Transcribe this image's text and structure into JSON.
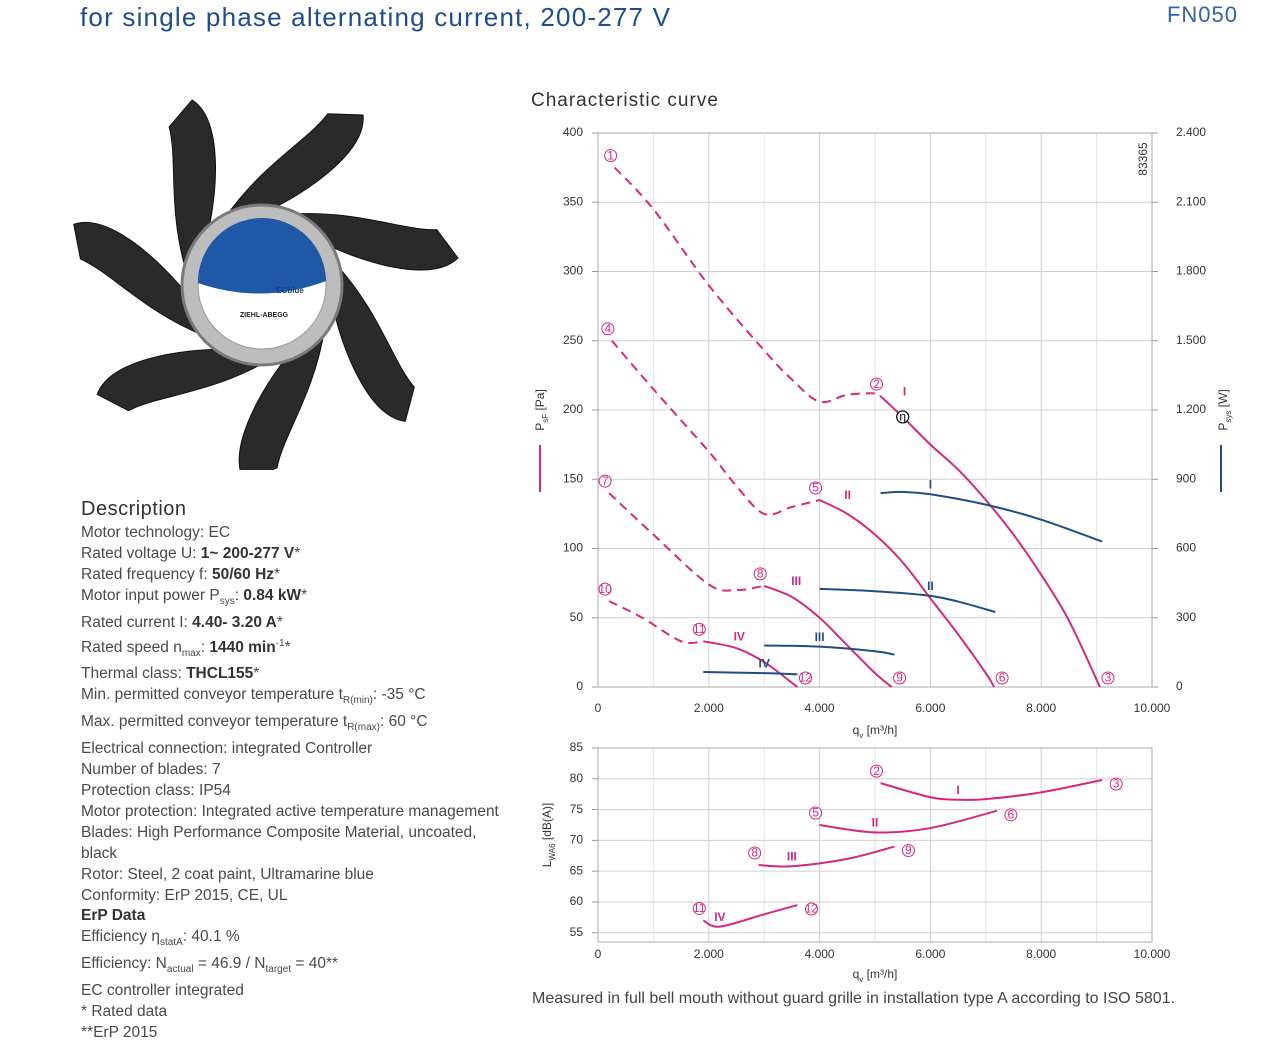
{
  "header": {
    "subtitle": "for single phase alternating current, 200-277 V",
    "code": "FN050"
  },
  "fan_labels": [
    "ECblue",
    "ZIEHL-ABEGG"
  ],
  "description": {
    "title": "Description",
    "lines": [
      [
        "Motor technology: EC"
      ],
      [
        "Rated voltage U: ",
        {
          "t": "1~ 200-277 V",
          "s": "b"
        },
        "*"
      ],
      [
        "Rated frequency f: ",
        {
          "t": "50/60 Hz",
          "s": "b"
        },
        "*"
      ],
      [
        "Motor input power P",
        {
          "t": "sys",
          "s": "sub"
        },
        ": ",
        {
          "t": "0.84 kW",
          "s": "b"
        },
        "*"
      ],
      [
        "Rated current I: ",
        {
          "t": "4.40- 3.20 A",
          "s": "b"
        },
        "*"
      ],
      [
        "Rated speed n",
        {
          "t": "max",
          "s": "sub"
        },
        ": ",
        {
          "t": "1440 min",
          "s": "b"
        },
        {
          "t": "-1",
          "s": "sup"
        },
        "*"
      ],
      [
        "Thermal class: ",
        {
          "t": "THCL155",
          "s": "b"
        },
        "*"
      ],
      [
        "Min. permitted conveyor temperature t",
        {
          "t": "R(min)",
          "s": "sub"
        },
        ": -35  °C"
      ],
      [
        "Max. permitted conveyor temperature t",
        {
          "t": "R(max)",
          "s": "sub"
        },
        ": 60  °C"
      ],
      [
        "Electrical connection: integrated Controller"
      ],
      [
        "Number of blades: 7"
      ],
      [
        "Protection class: IP54"
      ],
      [
        "Motor protection: Integrated active temperature management"
      ],
      [
        "Blades: High Performance Composite Material, uncoated,"
      ],
      [
        "black"
      ],
      [
        "Rotor: Steel, 2 coat paint, Ultramarine blue"
      ],
      [
        "Conformity: ErP 2015, CE, UL"
      ],
      [
        {
          "t": "ErP Data",
          "s": "b"
        }
      ],
      [
        "Efficiency η",
        {
          "t": "statA",
          "s": "sub"
        },
        ": 40.1 %"
      ],
      [
        "Efficiency: N",
        {
          "t": "actual",
          "s": "sub"
        },
        " = 46.9 / N",
        {
          "t": "target",
          "s": "sub"
        },
        " = 40**"
      ],
      [
        "EC controller integrated"
      ],
      [
        "* Rated data"
      ],
      [
        "**ErP 2015"
      ]
    ]
  },
  "footer": "Measured in full bell mouth without guard grille in installation type A according to ISO 5801.",
  "chart_data": [
    {
      "type": "line",
      "title": "Characteristic curve",
      "code": "83365",
      "xlabel": [
        "q",
        {
          "t": "v",
          "s": "sub"
        },
        " [m³/h]"
      ],
      "ylabel": [
        "P",
        {
          "t": "sF",
          "s": "sub"
        },
        " [Pa]"
      ],
      "y2label": [
        "P",
        {
          "t": "sys",
          "s": "sub"
        },
        " [W]"
      ],
      "xlim": [
        0,
        10000
      ],
      "xticks": [
        0,
        {
          "value": 2000,
          "label": "2.000"
        },
        {
          "value": 4000,
          "label": "4.000"
        },
        {
          "value": 6000,
          "label": "6.000"
        },
        {
          "value": 8000,
          "label": "8.000"
        },
        {
          "value": 10000,
          "label": "10.000"
        }
      ],
      "xminorticks": [
        1000,
        3000,
        5000,
        7000,
        9000
      ],
      "ylim": [
        0,
        400
      ],
      "yticks": [
        0,
        50,
        100,
        150,
        200,
        250,
        300,
        350,
        400
      ],
      "y2lim": [
        0,
        2400
      ],
      "y2ticks": [
        0,
        300,
        600,
        900,
        {
          "value": 1200,
          "label": "1.200"
        },
        {
          "value": 1500,
          "label": "1.500"
        },
        {
          "value": 1800,
          "label": "1.800"
        },
        {
          "value": 2100,
          "label": "2.100"
        },
        {
          "value": 2400,
          "label": "2.400"
        }
      ],
      "ylabel_color": "#d6287f",
      "y2label_color": "#1f4e85",
      "grid": true,
      "series": [
        {
          "color": "#d6287f",
          "dashed": true,
          "start_marker": "1",
          "x": [
            300,
            1000,
            2000,
            3000,
            3500,
            4000,
            4500,
            5000,
            5100
          ],
          "values": [
            375,
            345,
            290,
            243,
            222,
            206,
            211,
            212,
            210
          ]
        },
        {
          "name": "I",
          "color": "#d6287f",
          "start_marker": "2",
          "end_marker": "3",
          "x": [
            5100,
            5500,
            6000,
            6500,
            7000,
            7500,
            8000,
            8500,
            9060
          ],
          "values": [
            210,
            195,
            175,
            157,
            135,
            110,
            81,
            48,
            0
          ]
        },
        {
          "color": "#d6287f",
          "dashed": true,
          "start_marker": "4",
          "x": [
            250,
            1000,
            2000,
            2500,
            3000,
            3500,
            4000
          ],
          "values": [
            250,
            215,
            170,
            145,
            125,
            130,
            135
          ]
        },
        {
          "name": "II",
          "color": "#d6287f",
          "start_marker": "5",
          "end_marker": "6",
          "x": [
            4000,
            4500,
            5000,
            5500,
            6000,
            6500,
            7000,
            7150
          ],
          "values": [
            135,
            125,
            110,
            90,
            64,
            38,
            10,
            0
          ]
        },
        {
          "color": "#d6287f",
          "dashed": true,
          "start_marker": "7",
          "x": [
            200,
            1000,
            2000,
            2500,
            3000
          ],
          "values": [
            140,
            110,
            74,
            70,
            73
          ]
        },
        {
          "name": "III",
          "color": "#d6287f",
          "start_marker": "8",
          "end_marker": "9",
          "x": [
            3000,
            3500,
            4000,
            4500,
            5000,
            5300
          ],
          "values": [
            73,
            65,
            50,
            30,
            10,
            0
          ]
        },
        {
          "color": "#d6287f",
          "dashed": true,
          "start_marker": "10",
          "x": [
            200,
            800,
            1500,
            1900
          ],
          "values": [
            62,
            50,
            33,
            33
          ]
        },
        {
          "name": "IV",
          "color": "#d6287f",
          "start_marker": "11",
          "end_marker": "12",
          "x": [
            1900,
            2500,
            3000,
            3500,
            3600
          ],
          "values": [
            33,
            28,
            18,
            3,
            0
          ]
        },
        {
          "name": "I",
          "color": "#1f4e85",
          "axis": "y2",
          "x": [
            5100,
            5500,
            6000,
            7000,
            8000,
            9100
          ],
          "values": [
            840,
            845,
            835,
            790,
            725,
            630
          ]
        },
        {
          "name": "II",
          "color": "#1f4e85",
          "axis": "y2",
          "x": [
            4000,
            5000,
            6000,
            6500,
            7170
          ],
          "values": [
            425,
            415,
            395,
            370,
            325
          ]
        },
        {
          "name": "III",
          "color": "#1f4e85",
          "axis": "y2",
          "x": [
            3000,
            4000,
            5000,
            5350
          ],
          "values": [
            180,
            175,
            155,
            140
          ]
        },
        {
          "name": "IV",
          "color": "#1f4e85",
          "axis": "y2",
          "x": [
            1900,
            3000,
            3600
          ],
          "values": [
            65,
            60,
            55
          ]
        }
      ],
      "annotations": [
        {
          "text": "η",
          "x": 5500,
          "y": 195
        }
      ]
    },
    {
      "type": "line",
      "xlabel": [
        "q",
        {
          "t": "v",
          "s": "sub"
        },
        " [m³/h]"
      ],
      "ylabel": [
        "L",
        {
          "t": "WA6",
          "s": "sub"
        },
        " [dB(A)]"
      ],
      "xlim": [
        0,
        10000
      ],
      "xticks": [
        0,
        {
          "value": 2000,
          "label": "2.000"
        },
        {
          "value": 4000,
          "label": "4.000"
        },
        {
          "value": 6000,
          "label": "6.000"
        },
        {
          "value": 8000,
          "label": "8.000"
        },
        {
          "value": 10000,
          "label": "10.000"
        }
      ],
      "xminorticks": [
        1000,
        3000,
        5000,
        7000,
        9000
      ],
      "ylim": [
        53.5,
        85
      ],
      "yticks": [
        55,
        60,
        65,
        70,
        75,
        80,
        85
      ],
      "grid": true,
      "series": [
        {
          "name": "I",
          "color": "#d6287f",
          "start_marker": "2",
          "end_marker": "3",
          "x": [
            5100,
            6000,
            6500,
            7000,
            8000,
            9100
          ],
          "values": [
            79.3,
            77,
            76.6,
            76.7,
            77.8,
            79.8
          ]
        },
        {
          "name": "II",
          "color": "#d6287f",
          "start_marker": "5",
          "end_marker": "6",
          "x": [
            4000,
            5000,
            6000,
            7200
          ],
          "values": [
            72.5,
            71.3,
            72,
            74.8
          ]
        },
        {
          "name": "III",
          "color": "#d6287f",
          "start_marker": "8",
          "end_marker": "9",
          "x": [
            2900,
            3500,
            4500,
            5350
          ],
          "values": [
            66,
            65.8,
            67,
            69
          ]
        },
        {
          "name": "IV",
          "color": "#d6287f",
          "start_marker": "11",
          "end_marker": "12",
          "x": [
            1900,
            2200,
            3000,
            3600
          ],
          "values": [
            57,
            56,
            58,
            59.5
          ]
        }
      ]
    }
  ]
}
